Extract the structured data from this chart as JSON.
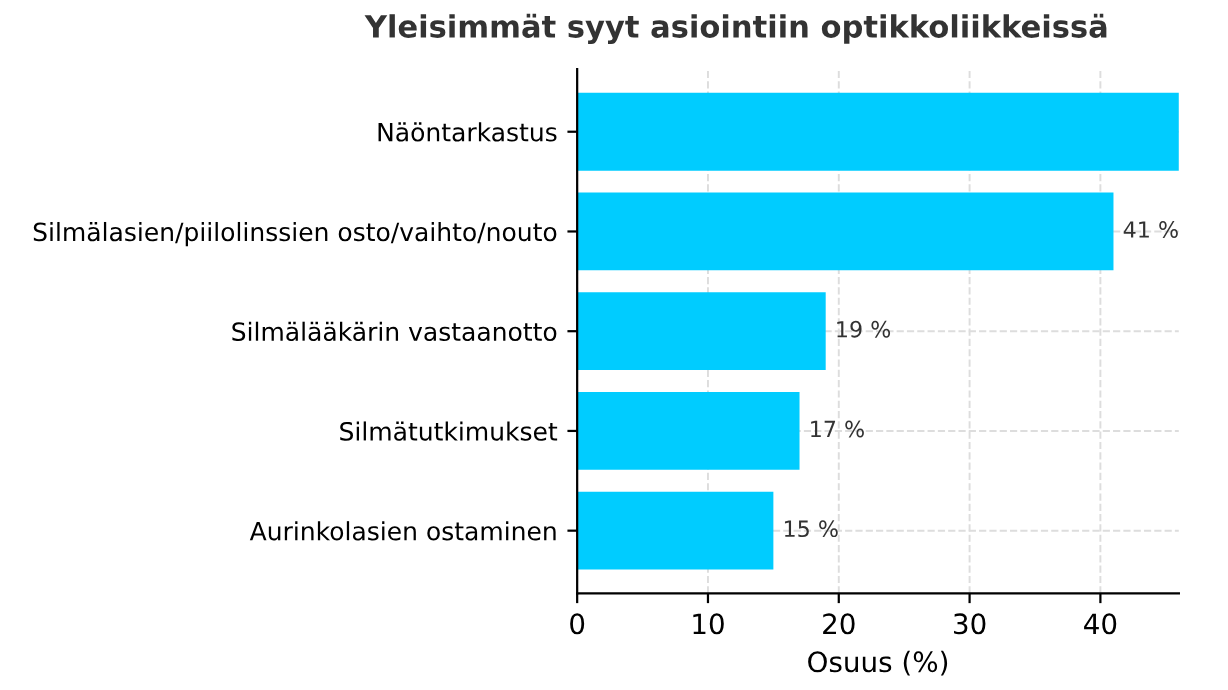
{
  "chart_data": {
    "type": "bar",
    "orientation": "horizontal",
    "title": "Yleisimmät syyt asiointiin optikkoliikkeissä",
    "xlabel": "Osuus (%)",
    "categories": [
      "Näöntarkastus",
      "Silmälasien/piilolinssien osto/vaihto/nouto",
      "Silmälääkärin vastaanotto",
      "Silmätutkimukset",
      "Aurinkolasien ostaminen"
    ],
    "values": [
      46,
      41,
      19,
      17,
      15
    ],
    "value_labels": [
      null,
      "41 %",
      "19 %",
      "17 %",
      "15 %"
    ],
    "color": "#00ccff",
    "xlim": [
      0,
      46
    ],
    "xticks": [
      0,
      10,
      20,
      30,
      40
    ],
    "grid": true
  }
}
